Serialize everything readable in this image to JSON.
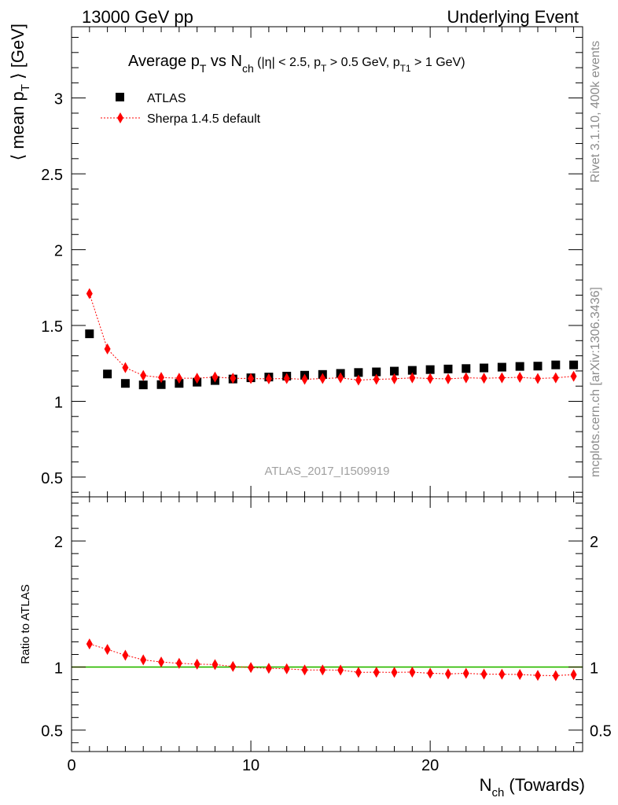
{
  "header": {
    "left": "13000 GeV pp",
    "right": "Underlying Event"
  },
  "side_labels": {
    "upper": "Rivet 3.1.10,  400k events",
    "lower": "mcplots.cern.ch [arXiv:1306.3436]"
  },
  "chart_data": [
    {
      "type": "scatter",
      "title": {
        "prefix": "Average p",
        "sub1": "T",
        "mid": " vs N",
        "sub2": "ch",
        "cuts1": " (|η| < 2.5, p",
        "sub3": "T",
        "cuts2": " > 0.5 GeV, p",
        "sub4": "T1",
        "cuts3": " > 1 GeV)"
      },
      "ylabel": {
        "main": "⟨ mean p",
        "sub": "T",
        "end": " ⟩ [GeV]"
      },
      "watermark": "ATLAS_2017_I1509919",
      "xlim": [
        0,
        28.5
      ],
      "ylim": [
        0.37,
        3.47
      ],
      "yticks": [
        "0.5",
        "1",
        "1.5",
        "2",
        "2.5",
        "3"
      ],
      "legend_position": "top-left",
      "series": [
        {
          "name": "ATLAS",
          "color": "#000000",
          "marker": "square",
          "x": [
            1,
            2,
            3,
            4,
            5,
            6,
            7,
            8,
            9,
            10,
            11,
            12,
            13,
            14,
            15,
            16,
            17,
            18,
            19,
            20,
            21,
            22,
            23,
            24,
            25,
            26,
            27,
            28
          ],
          "y": [
            1.445,
            1.18,
            1.118,
            1.108,
            1.11,
            1.118,
            1.126,
            1.137,
            1.147,
            1.155,
            1.16,
            1.166,
            1.172,
            1.177,
            1.184,
            1.19,
            1.194,
            1.199,
            1.204,
            1.209,
            1.213,
            1.216,
            1.22,
            1.225,
            1.23,
            1.232,
            1.24,
            1.24
          ]
        },
        {
          "name": "Sherpa 1.4.5 default",
          "color": "#ff0000",
          "marker": "diamond",
          "x": [
            1,
            2,
            3,
            4,
            5,
            6,
            7,
            8,
            9,
            10,
            11,
            12,
            13,
            14,
            15,
            16,
            17,
            18,
            19,
            20,
            21,
            22,
            23,
            24,
            25,
            26,
            27,
            28
          ],
          "y": [
            1.71,
            1.345,
            1.222,
            1.17,
            1.157,
            1.152,
            1.152,
            1.16,
            1.152,
            1.15,
            1.148,
            1.15,
            1.145,
            1.15,
            1.155,
            1.14,
            1.145,
            1.148,
            1.155,
            1.15,
            1.148,
            1.155,
            1.152,
            1.155,
            1.158,
            1.15,
            1.155,
            1.165
          ]
        }
      ]
    },
    {
      "type": "scatter",
      "ylabel": "Ratio to ATLAS",
      "xlabel": {
        "main": "N",
        "sub": "ch",
        "end": " (Towards)"
      },
      "xlim": [
        0,
        28.5
      ],
      "ylim": [
        0.33,
        2.35
      ],
      "xticks": [
        "0",
        "10",
        "20"
      ],
      "yticks": [
        "0.5",
        "1",
        "2"
      ],
      "band_color": "#c8f08c",
      "reference_color": "#00aa00",
      "series": [
        {
          "name": "Sherpa 1.4.5 default",
          "color": "#ff0000",
          "marker": "diamond",
          "x": [
            1,
            2,
            3,
            4,
            5,
            6,
            7,
            8,
            9,
            10,
            11,
            12,
            13,
            14,
            15,
            16,
            17,
            18,
            19,
            20,
            21,
            22,
            23,
            24,
            25,
            26,
            27,
            28
          ],
          "y": [
            1.183,
            1.14,
            1.094,
            1.057,
            1.04,
            1.03,
            1.023,
            1.02,
            1.005,
            0.996,
            0.99,
            0.986,
            0.977,
            0.977,
            0.976,
            0.958,
            0.959,
            0.958,
            0.96,
            0.951,
            0.946,
            0.95,
            0.944,
            0.943,
            0.941,
            0.934,
            0.932,
            0.94
          ]
        }
      ]
    }
  ]
}
